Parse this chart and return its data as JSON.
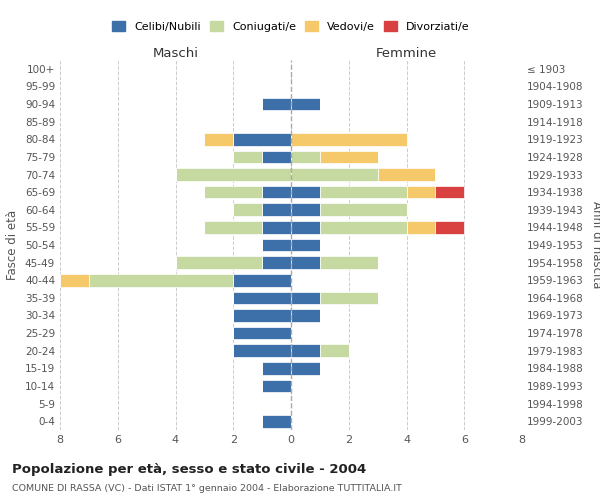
{
  "age_groups": [
    "0-4",
    "5-9",
    "10-14",
    "15-19",
    "20-24",
    "25-29",
    "30-34",
    "35-39",
    "40-44",
    "45-49",
    "50-54",
    "55-59",
    "60-64",
    "65-69",
    "70-74",
    "75-79",
    "80-84",
    "85-89",
    "90-94",
    "95-99",
    "100+"
  ],
  "birth_years": [
    "1999-2003",
    "1994-1998",
    "1989-1993",
    "1984-1988",
    "1979-1983",
    "1974-1978",
    "1969-1973",
    "1964-1968",
    "1959-1963",
    "1954-1958",
    "1949-1953",
    "1944-1948",
    "1939-1943",
    "1934-1938",
    "1929-1933",
    "1924-1928",
    "1919-1923",
    "1914-1918",
    "1909-1913",
    "1904-1908",
    "≤ 1903"
  ],
  "maschi": {
    "celibi": [
      1,
      0,
      1,
      1,
      2,
      2,
      2,
      2,
      2,
      1,
      1,
      1,
      1,
      1,
      0,
      1,
      2,
      0,
      1,
      0,
      0
    ],
    "coniugati": [
      0,
      0,
      0,
      0,
      0,
      0,
      0,
      0,
      5,
      3,
      0,
      2,
      1,
      2,
      4,
      1,
      0,
      0,
      0,
      0,
      0
    ],
    "vedovi": [
      0,
      0,
      0,
      0,
      0,
      0,
      0,
      0,
      1,
      0,
      0,
      0,
      0,
      0,
      0,
      0,
      1,
      0,
      0,
      0,
      0
    ],
    "divorziati": [
      0,
      0,
      0,
      0,
      0,
      0,
      0,
      0,
      0,
      0,
      0,
      0,
      0,
      0,
      0,
      0,
      0,
      0,
      0,
      0,
      0
    ]
  },
  "femmine": {
    "celibi": [
      0,
      0,
      0,
      1,
      1,
      0,
      1,
      1,
      0,
      1,
      1,
      1,
      1,
      1,
      0,
      0,
      0,
      0,
      1,
      0,
      0
    ],
    "coniugati": [
      0,
      0,
      0,
      0,
      1,
      0,
      0,
      2,
      0,
      2,
      0,
      3,
      3,
      3,
      3,
      1,
      0,
      0,
      0,
      0,
      0
    ],
    "vedovi": [
      0,
      0,
      0,
      0,
      0,
      0,
      0,
      0,
      0,
      0,
      0,
      1,
      0,
      1,
      2,
      2,
      4,
      0,
      0,
      0,
      0
    ],
    "divorziati": [
      0,
      0,
      0,
      0,
      0,
      0,
      0,
      0,
      0,
      0,
      0,
      1,
      0,
      1,
      0,
      0,
      0,
      0,
      0,
      0,
      0
    ]
  },
  "colors": {
    "celibi": "#3d6fa8",
    "coniugati": "#c5d9a0",
    "vedovi": "#f5c96a",
    "divorziati": "#d94040"
  },
  "xlim": 8,
  "title": "Popolazione per età, sesso e stato civile - 2004",
  "subtitle": "COMUNE DI RASSA (VC) - Dati ISTAT 1° gennaio 2004 - Elaborazione TUTTITALIA.IT",
  "ylabel_left": "Fasce di età",
  "ylabel_right": "Anni di nascita",
  "xlabel_maschi": "Maschi",
  "xlabel_femmine": "Femmine",
  "legend_labels": [
    "Celibi/Nubili",
    "Coniugati/e",
    "Vedovi/e",
    "Divorziati/e"
  ],
  "background_color": "#ffffff",
  "grid_color": "#cccccc"
}
